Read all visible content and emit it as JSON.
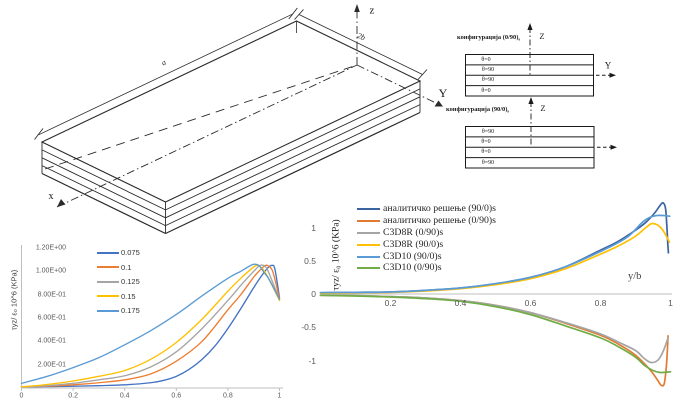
{
  "plate_diagram": {
    "dim_length_label": "a",
    "dim_width_label": "2b",
    "axis_x_label": "x",
    "axis_y_label": "Y",
    "axis_z_label": "z"
  },
  "layup_diagrams": [
    {
      "title": "конфигурација (0/90)",
      "subscript": "s",
      "axis_z_label": "Z",
      "axis_y_label": "Y",
      "layers": [
        "θ=0",
        "θ=90",
        "θ=90",
        "θ=0"
      ]
    },
    {
      "title": "конфигурација (90/0)",
      "subscript": "s",
      "axis_z_label": "Z",
      "axis_y_label": "",
      "layers": [
        "θ=90",
        "θ=0",
        "θ=0",
        "θ=90"
      ]
    }
  ],
  "chart_data": [
    {
      "type": "line",
      "title": "",
      "xlabel": "",
      "ylabel": "τyz/ ε₀ 10^6 (KPa)",
      "xlim": [
        0,
        1
      ],
      "ylim": [
        0,
        1.2
      ],
      "grid": false,
      "legend_position": "inside-top-left",
      "x_ticks": [
        "0",
        "0.2",
        "0.4",
        "0.6",
        "0.8",
        "1"
      ],
      "y_ticks": [
        "2.00E-01",
        "4.00E-01",
        "6.00E-01",
        "8.00E-01",
        "1.00E+00",
        "1.20E+00"
      ],
      "series": [
        {
          "name": "0.075",
          "color": "#4472C4",
          "x": [
            0,
            0.1,
            0.2,
            0.3,
            0.4,
            0.5,
            0.55,
            0.6,
            0.65,
            0.7,
            0.75,
            0.8,
            0.85,
            0.9,
            0.93,
            0.955,
            0.97,
            0.982,
            1.0
          ],
          "y": [
            0.01,
            0.012,
            0.015,
            0.02,
            0.027,
            0.045,
            0.065,
            0.1,
            0.16,
            0.245,
            0.36,
            0.51,
            0.68,
            0.86,
            0.96,
            1.03,
            1.05,
            1.02,
            0.775
          ]
        },
        {
          "name": "0.1",
          "color": "#ED7D31",
          "x": [
            0,
            0.1,
            0.2,
            0.3,
            0.4,
            0.5,
            0.6,
            0.7,
            0.8,
            0.85,
            0.9,
            0.92,
            0.945,
            0.96,
            0.975,
            1.0
          ],
          "y": [
            0.01,
            0.015,
            0.027,
            0.045,
            0.07,
            0.12,
            0.23,
            0.4,
            0.67,
            0.8,
            0.95,
            1.0,
            1.05,
            1.04,
            0.99,
            0.765
          ]
        },
        {
          "name": "0.125",
          "color": "#A5A5A5",
          "x": [
            0,
            0.1,
            0.2,
            0.3,
            0.4,
            0.5,
            0.6,
            0.7,
            0.8,
            0.85,
            0.9,
            0.925,
            0.945,
            0.96,
            1.0
          ],
          "y": [
            0.01,
            0.02,
            0.04,
            0.07,
            0.105,
            0.18,
            0.31,
            0.51,
            0.75,
            0.88,
            1.0,
            1.05,
            1.04,
            0.98,
            0.755
          ]
        },
        {
          "name": "0.15",
          "color": "#FFC000",
          "x": [
            0,
            0.1,
            0.2,
            0.3,
            0.4,
            0.5,
            0.6,
            0.7,
            0.8,
            0.85,
            0.88,
            0.91,
            0.93,
            0.95,
            1.0
          ],
          "y": [
            0.01,
            0.03,
            0.06,
            0.1,
            0.15,
            0.245,
            0.39,
            0.59,
            0.83,
            0.94,
            1.0,
            1.05,
            1.03,
            0.97,
            0.75
          ]
        },
        {
          "name": "0.175",
          "color": "#5B9BD5",
          "x": [
            0,
            0.1,
            0.2,
            0.3,
            0.4,
            0.5,
            0.6,
            0.7,
            0.8,
            0.85,
            0.88,
            0.9,
            0.92,
            0.94,
            0.96,
            1.0
          ],
          "y": [
            0.04,
            0.1,
            0.175,
            0.26,
            0.37,
            0.49,
            0.63,
            0.79,
            0.94,
            1.0,
            1.04,
            1.06,
            1.05,
            0.99,
            0.93,
            0.76
          ]
        }
      ]
    },
    {
      "type": "line",
      "title": "",
      "xlabel": "y/b",
      "ylabel": "τyz/ ε₀ 10^6 (KPa)",
      "xlim": [
        0,
        1
      ],
      "ylim": [
        -1.5,
        1.5
      ],
      "grid": false,
      "legend_position": "inside-top-left",
      "x_ticks": [
        "0.2",
        "0.4",
        "0.6",
        "0.8",
        "1"
      ],
      "y_ticks": [
        "1",
        "0.5",
        "0",
        "-0.5",
        "-1"
      ],
      "series": [
        {
          "name": "аналитичко решење (90/0)s",
          "color": "#3B64A0",
          "x": [
            0,
            0.1,
            0.2,
            0.3,
            0.4,
            0.5,
            0.6,
            0.7,
            0.8,
            0.85,
            0.9,
            0.93,
            0.955,
            0.97,
            0.979,
            0.986,
            0.99,
            0.992,
            0.994
          ],
          "y": [
            0.02,
            0.025,
            0.03,
            0.055,
            0.09,
            0.155,
            0.25,
            0.41,
            0.66,
            0.79,
            0.96,
            1.08,
            1.22,
            1.33,
            1.37,
            1.28,
            0.98,
            0.78,
            0.62
          ]
        },
        {
          "name": "аналитичко решење (0/90)s",
          "color": "#E07B33",
          "x": [
            0,
            0.1,
            0.2,
            0.3,
            0.4,
            0.5,
            0.6,
            0.7,
            0.8,
            0.85,
            0.9,
            0.94,
            0.96,
            0.973,
            0.982,
            0.988,
            0.991,
            0.993
          ],
          "y": [
            -0.02,
            -0.025,
            -0.04,
            -0.06,
            -0.1,
            -0.17,
            -0.28,
            -0.44,
            -0.62,
            -0.75,
            -0.92,
            -1.13,
            -1.27,
            -1.37,
            -1.35,
            -1.1,
            -0.85,
            -0.63
          ]
        },
        {
          "name": "C3D8R (0/90)s",
          "color": "#A5A5A5",
          "x": [
            0,
            0.1,
            0.2,
            0.3,
            0.4,
            0.5,
            0.6,
            0.7,
            0.8,
            0.85,
            0.9,
            0.925,
            0.945,
            0.965,
            0.98,
            0.993
          ],
          "y": [
            -0.02,
            -0.025,
            -0.04,
            -0.06,
            -0.1,
            -0.17,
            -0.28,
            -0.43,
            -0.6,
            -0.72,
            -0.85,
            -0.97,
            -1.03,
            -0.99,
            -0.85,
            -0.66
          ]
        },
        {
          "name": "C3D8R (90/0)s",
          "color": "#FFC000",
          "x": [
            0,
            0.1,
            0.2,
            0.3,
            0.4,
            0.5,
            0.6,
            0.7,
            0.8,
            0.85,
            0.9,
            0.93,
            0.948,
            0.97,
            0.985,
            0.997
          ],
          "y": [
            0.01,
            0.02,
            0.025,
            0.045,
            0.08,
            0.14,
            0.23,
            0.38,
            0.6,
            0.72,
            0.87,
            1.0,
            1.06,
            1.01,
            0.9,
            0.78
          ]
        },
        {
          "name": "C3D10 (90/0)s",
          "color": "#5B9BD5",
          "x": [
            0,
            0.1,
            0.2,
            0.3,
            0.4,
            0.5,
            0.6,
            0.7,
            0.8,
            0.85,
            0.88,
            0.9,
            0.92,
            0.94,
            0.96,
            0.98,
            0.998
          ],
          "y": [
            0.02,
            0.025,
            0.03,
            0.055,
            0.09,
            0.155,
            0.25,
            0.41,
            0.64,
            0.77,
            0.87,
            0.97,
            1.08,
            1.15,
            1.18,
            1.18,
            1.17
          ]
        },
        {
          "name": "C3D10 (0/90)s",
          "color": "#70AD47",
          "x": [
            0,
            0.1,
            0.2,
            0.3,
            0.4,
            0.5,
            0.6,
            0.7,
            0.8,
            0.85,
            0.9,
            0.925,
            0.95,
            0.97,
            1.0
          ],
          "y": [
            -0.02,
            -0.03,
            -0.045,
            -0.07,
            -0.11,
            -0.19,
            -0.31,
            -0.48,
            -0.66,
            -0.79,
            -0.95,
            -1.07,
            -1.15,
            -1.18,
            -1.17
          ]
        }
      ]
    }
  ]
}
